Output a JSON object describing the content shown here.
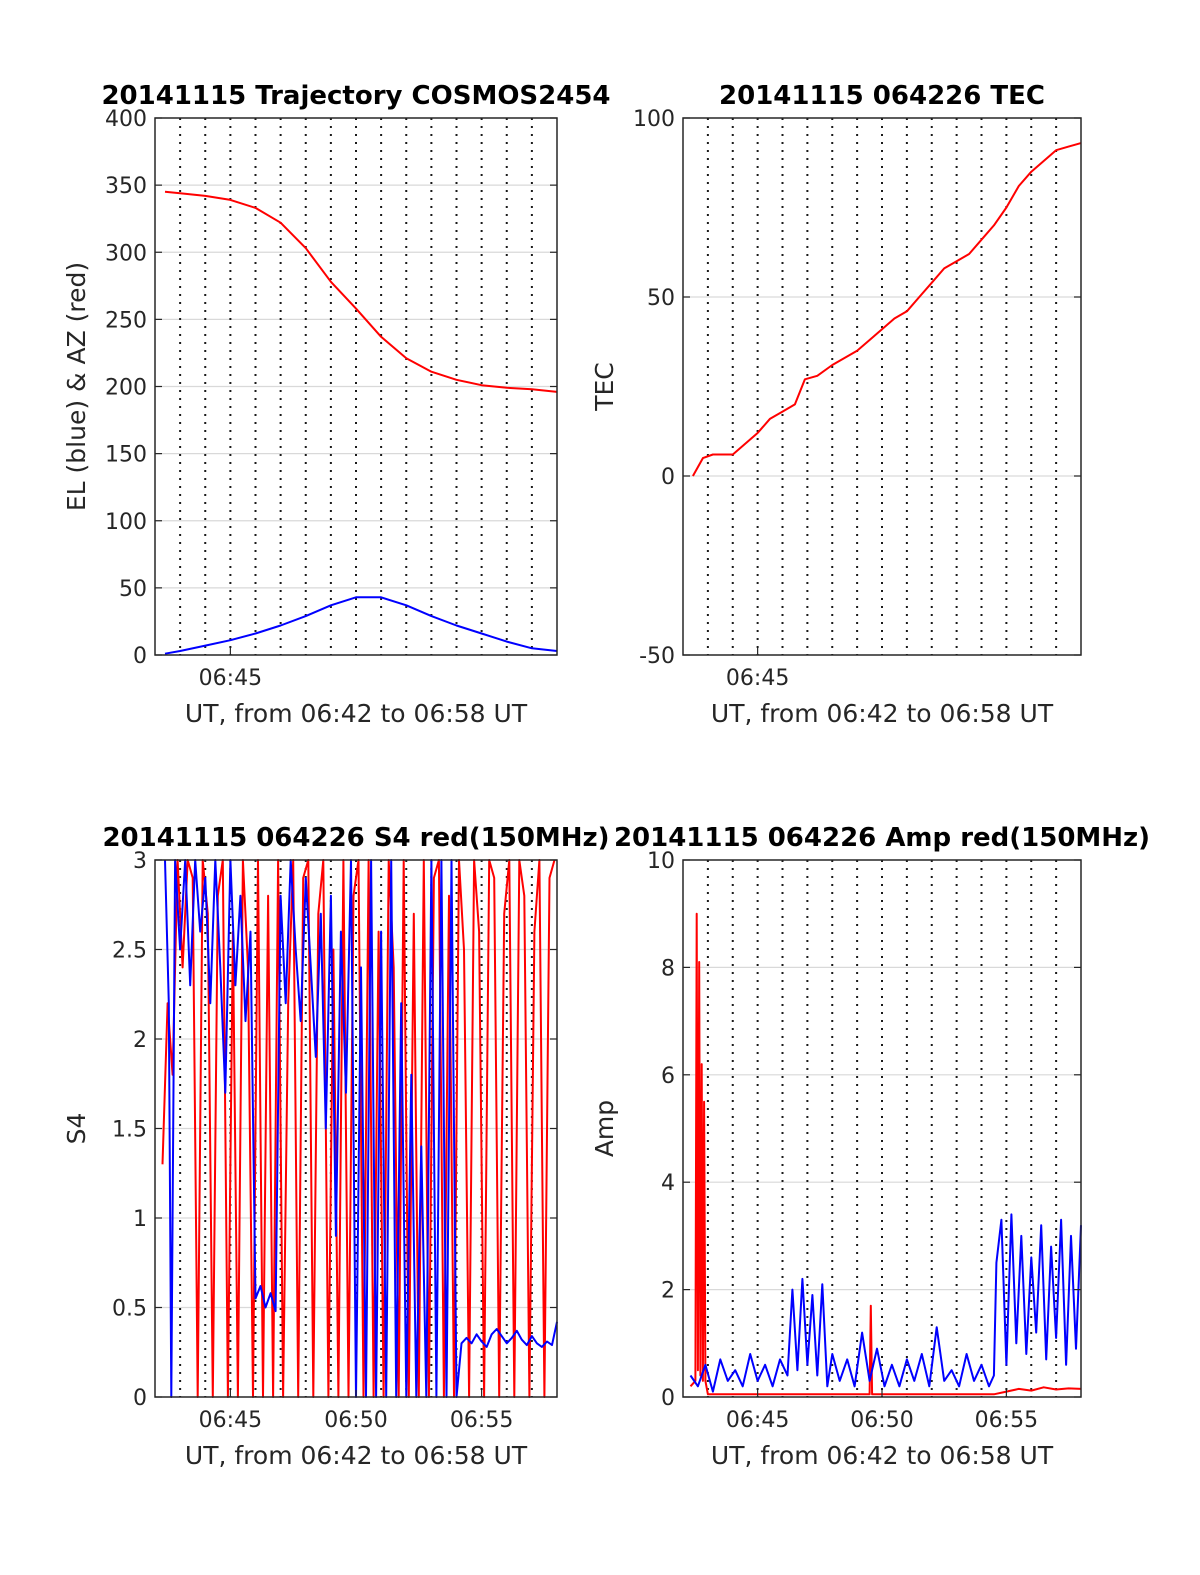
{
  "colors": {
    "az": "#ff0000",
    "el": "#0000ff",
    "tec": "#ff0000",
    "s4_red": "#ff0000",
    "s4_blue": "#0000ff",
    "amp_red": "#ff0000",
    "amp_blue": "#0000ff"
  },
  "chart_data": [
    {
      "id": "trajectory",
      "type": "line",
      "title": "20141115 Trajectory COSMOS2454",
      "xlabel": "UT, from 06:42 to 06:58 UT",
      "ylabel": "EL (blue) & AZ (red)",
      "xlim_min": [
        42.0,
        58.0
      ],
      "ylim": [
        0,
        400
      ],
      "yticks": [
        0,
        50,
        100,
        150,
        200,
        250,
        300,
        350,
        400
      ],
      "xtick_labels": [
        {
          "at": 45,
          "label": "06:45"
        }
      ],
      "vgrid_min": [
        43,
        44,
        45,
        46,
        47,
        48,
        49,
        50,
        51,
        52,
        53,
        54,
        55,
        56,
        57
      ],
      "grid": true,
      "series": [
        {
          "color": "az",
          "x": [
            42.4,
            43,
            44,
            45,
            46,
            47,
            48,
            49,
            50,
            51,
            52,
            53,
            54,
            55,
            56,
            57,
            58
          ],
          "y": [
            345,
            344,
            342,
            339,
            333,
            322,
            303,
            278,
            258,
            237,
            221,
            211,
            205,
            201,
            199,
            198,
            196
          ]
        },
        {
          "color": "el",
          "x": [
            42.4,
            43,
            44,
            45,
            46,
            47,
            48,
            49,
            50,
            51,
            52,
            53,
            54,
            55,
            56,
            57,
            58
          ],
          "y": [
            1,
            3,
            7,
            11,
            16,
            22,
            29,
            37,
            43,
            43,
            37,
            29,
            22,
            16,
            10,
            5,
            3
          ]
        }
      ]
    },
    {
      "id": "tec",
      "type": "line",
      "title": "20141115 064226 TEC",
      "xlabel": "UT, from 06:42 to 06:58 UT",
      "ylabel": "TEC",
      "xlim_min": [
        42.0,
        58.0
      ],
      "ylim": [
        -50,
        100
      ],
      "yticks": [
        -50,
        0,
        50,
        100
      ],
      "xtick_labels": [
        {
          "at": 45,
          "label": "06:45"
        }
      ],
      "vgrid_min": [
        43,
        44,
        45,
        46,
        47,
        48,
        49,
        50,
        51,
        52,
        53,
        54,
        55,
        56,
        57
      ],
      "grid": true,
      "series": [
        {
          "color": "tec",
          "x": [
            42.4,
            42.8,
            43.2,
            44,
            44.5,
            45,
            45.5,
            46,
            46.5,
            46.9,
            47.4,
            48,
            48.5,
            49,
            49.5,
            50,
            50.5,
            51,
            51.5,
            52,
            52.5,
            53,
            53.5,
            54,
            54.5,
            55,
            55.5,
            56,
            56.5,
            57,
            57.5,
            58
          ],
          "y": [
            0,
            5,
            6,
            6,
            9,
            12,
            16,
            18,
            20,
            27,
            28,
            31,
            33,
            35,
            38,
            41,
            44,
            46,
            50,
            54,
            58,
            60,
            62,
            66,
            70,
            75,
            81,
            85,
            88,
            91,
            92,
            93
          ]
        }
      ]
    },
    {
      "id": "s4",
      "type": "line",
      "title": "20141115 064226 S4 red(150MHz)",
      "xlabel": "UT, from 06:42 to 06:58 UT",
      "ylabel": "S4",
      "xlim_min": [
        42.0,
        58.0
      ],
      "ylim": [
        0,
        3
      ],
      "yticks": [
        0,
        0.5,
        1,
        1.5,
        2,
        2.5,
        3
      ],
      "xtick_labels": [
        {
          "at": 45,
          "label": "06:45"
        },
        {
          "at": 50,
          "label": "06:50"
        },
        {
          "at": 55,
          "label": "06:55"
        }
      ],
      "vgrid_min": [
        43,
        44,
        45,
        46,
        47,
        48,
        49,
        50,
        51,
        52,
        53,
        54,
        55,
        56,
        57
      ],
      "grid": true,
      "series": [
        {
          "color": "s4_red",
          "x": [
            42.3,
            42.5,
            42.7,
            42.9,
            43.1,
            43.3,
            43.5,
            43.7,
            43.9,
            44.1,
            44.3,
            44.5,
            44.7,
            44.9,
            45.1,
            45.3,
            45.5,
            45.7,
            45.9,
            46.1,
            46.3,
            46.5,
            46.7,
            46.9,
            47.1,
            47.3,
            47.5,
            47.7,
            47.9,
            48.1,
            48.3,
            48.5,
            48.7,
            48.9,
            49.1,
            49.3,
            49.5,
            49.7,
            49.9,
            50.1,
            50.3,
            50.5,
            50.7,
            50.9,
            51.1,
            51.3,
            51.5,
            51.7,
            51.9,
            52.1,
            52.3,
            52.5,
            52.7,
            52.9,
            53.1,
            53.3,
            53.5,
            53.7,
            53.9,
            54.1,
            54.3,
            54.5,
            54.7,
            54.9,
            55.1,
            55.3,
            55.5,
            55.7,
            55.9,
            56.1,
            56.3,
            56.5,
            56.7,
            56.9,
            57.1,
            57.3,
            57.5,
            57.7,
            57.9
          ],
          "y": [
            1.3,
            2.2,
            1.8,
            3,
            2.4,
            3,
            2.9,
            0,
            3,
            2.7,
            0,
            2.8,
            3,
            0,
            2.6,
            0,
            3,
            2.4,
            0,
            3,
            0,
            2.8,
            0,
            3,
            0,
            2.2,
            3,
            0,
            2.9,
            3,
            0,
            2.7,
            3,
            0,
            2.5,
            0,
            3,
            0,
            2.8,
            3,
            0,
            3,
            0,
            2.6,
            0,
            3,
            2.4,
            0,
            3,
            0,
            2.7,
            0,
            3,
            0,
            2.9,
            3,
            0,
            2.8,
            0,
            3,
            2.5,
            0,
            3,
            2.6,
            0,
            3,
            2.9,
            0,
            2.7,
            3,
            0,
            3,
            2.8,
            0,
            2.6,
            3,
            0,
            2.9,
            3
          ]
        },
        {
          "color": "s4_blue",
          "x": [
            42.4,
            42.55,
            42.65,
            42.8,
            43,
            43.2,
            43.4,
            43.6,
            43.8,
            44,
            44.2,
            44.4,
            44.6,
            44.8,
            45,
            45.2,
            45.4,
            45.6,
            45.8,
            46,
            46.2,
            46.4,
            46.6,
            46.8,
            47,
            47.2,
            47.4,
            47.6,
            47.8,
            48,
            48.2,
            48.4,
            48.6,
            48.8,
            49,
            49.2,
            49.4,
            49.6,
            49.8,
            50,
            50.2,
            50.4,
            50.6,
            50.8,
            51,
            51.2,
            51.4,
            51.6,
            51.8,
            52,
            52.2,
            52.4,
            52.6,
            52.8,
            53,
            53.2,
            53.4,
            53.6,
            53.8,
            54,
            54.2,
            54.4,
            54.6,
            54.8,
            55,
            55.2,
            55.4,
            55.6,
            55.8,
            56,
            56.2,
            56.4,
            56.6,
            56.8,
            57,
            57.2,
            57.4,
            57.6,
            57.8,
            58
          ],
          "y": [
            3,
            2.2,
            0,
            3,
            2.5,
            3,
            2.3,
            3,
            2.6,
            2.9,
            2.2,
            3,
            2.4,
            1.7,
            3,
            2.3,
            2.8,
            2.1,
            2.6,
            0.55,
            0.62,
            0.5,
            0.58,
            0.48,
            2.8,
            2.2,
            3,
            2.5,
            2.1,
            2.9,
            2.4,
            1.9,
            2.7,
            1.5,
            2.8,
            0.9,
            2.6,
            1.7,
            3,
            0,
            2.4,
            0,
            3,
            0,
            2.6,
            0,
            3,
            0,
            2.2,
            0,
            1.8,
            0,
            1.4,
            0,
            3,
            0,
            3,
            0,
            3,
            0,
            0.3,
            0.33,
            0.3,
            0.35,
            0.31,
            0.28,
            0.35,
            0.38,
            0.34,
            0.3,
            0.33,
            0.37,
            0.32,
            0.29,
            0.34,
            0.3,
            0.28,
            0.31,
            0.29,
            0.42
          ]
        }
      ]
    },
    {
      "id": "amp",
      "type": "line",
      "title": "20141115 064226 Amp red(150MHz)",
      "xlabel": "UT, from 06:42 to 06:58 UT",
      "ylabel": "Amp",
      "xlim_min": [
        42.0,
        58.0
      ],
      "ylim": [
        0,
        10
      ],
      "yticks": [
        0,
        2,
        4,
        6,
        8,
        10
      ],
      "xtick_labels": [
        {
          "at": 45,
          "label": "06:45"
        },
        {
          "at": 50,
          "label": "06:50"
        },
        {
          "at": 55,
          "label": "06:55"
        }
      ],
      "vgrid_min": [
        43,
        44,
        45,
        46,
        47,
        48,
        49,
        50,
        51,
        52,
        53,
        54,
        55,
        56,
        57
      ],
      "grid": true,
      "series": [
        {
          "color": "amp_red",
          "x": [
            42.3,
            42.5,
            42.55,
            42.6,
            42.65,
            42.7,
            42.75,
            42.8,
            42.85,
            42.9,
            43,
            43.5,
            44,
            45,
            46,
            47,
            48,
            49,
            49.5,
            49.55,
            49.6,
            50,
            51,
            52,
            53,
            54,
            54.5,
            55,
            55.5,
            56,
            56.5,
            57,
            57.5,
            58
          ],
          "y": [
            0.2,
            0.3,
            9.0,
            0.5,
            8.1,
            0.4,
            6.2,
            0.3,
            5.5,
            0.3,
            0.05,
            0.05,
            0.05,
            0.05,
            0.05,
            0.05,
            0.05,
            0.05,
            0.05,
            1.7,
            0.05,
            0.05,
            0.05,
            0.05,
            0.05,
            0.05,
            0.05,
            0.1,
            0.15,
            0.12,
            0.18,
            0.14,
            0.16,
            0.15
          ]
        },
        {
          "color": "amp_blue",
          "x": [
            42.3,
            42.6,
            42.9,
            43.2,
            43.5,
            43.8,
            44.1,
            44.4,
            44.7,
            45,
            45.3,
            45.6,
            45.9,
            46.2,
            46.4,
            46.6,
            46.8,
            47,
            47.2,
            47.4,
            47.6,
            47.8,
            48,
            48.3,
            48.6,
            48.9,
            49.2,
            49.5,
            49.8,
            50.1,
            50.4,
            50.7,
            51,
            51.3,
            51.6,
            51.9,
            52.2,
            52.5,
            52.8,
            53.1,
            53.4,
            53.7,
            54,
            54.3,
            54.5,
            54.6,
            54.8,
            55,
            55.2,
            55.4,
            55.6,
            55.8,
            56,
            56.2,
            56.4,
            56.6,
            56.8,
            57,
            57.2,
            57.4,
            57.6,
            57.8,
            58
          ],
          "y": [
            0.4,
            0.2,
            0.6,
            0.1,
            0.7,
            0.3,
            0.5,
            0.2,
            0.8,
            0.3,
            0.6,
            0.2,
            0.7,
            0.4,
            2.0,
            0.5,
            2.2,
            0.6,
            1.9,
            0.4,
            2.1,
            0.2,
            0.8,
            0.3,
            0.7,
            0.2,
            1.2,
            0.3,
            0.9,
            0.2,
            0.6,
            0.2,
            0.7,
            0.3,
            0.8,
            0.2,
            1.3,
            0.3,
            0.5,
            0.2,
            0.8,
            0.3,
            0.6,
            0.2,
            0.4,
            2.5,
            3.3,
            0.6,
            3.4,
            1.0,
            3.0,
            0.8,
            2.6,
            1.2,
            3.2,
            0.7,
            2.8,
            1.1,
            3.3,
            0.6,
            3.0,
            0.9,
            3.2
          ]
        }
      ]
    }
  ]
}
